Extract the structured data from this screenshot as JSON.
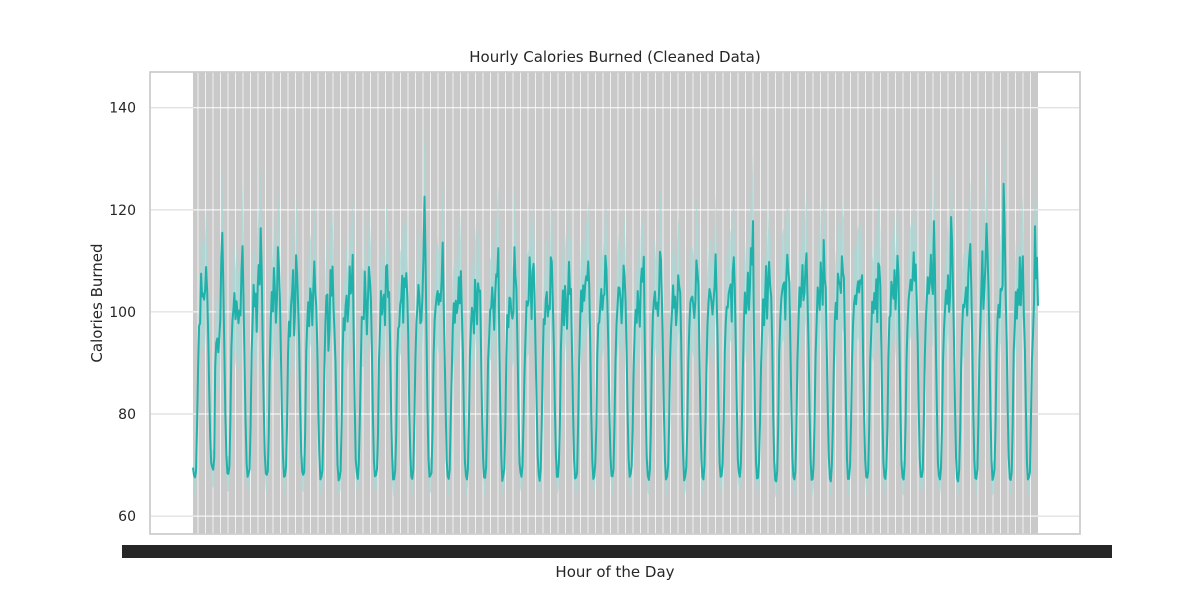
{
  "chart_data": {
    "type": "line",
    "title": "Hourly Calories Burned (Cleaned Data)",
    "xlabel": "Hour of the Day",
    "ylabel": "Calories Burned",
    "ylim": [
      56.5,
      147
    ],
    "yticks": [
      60,
      80,
      100,
      120,
      140
    ],
    "xtick_labels_note": "dense overlapping hourly timestamp labels rendered as a solid black band",
    "grid": true,
    "style": "line with shaded confidence band",
    "colors": {
      "line": "#20b2aa",
      "band": "#a8d8d5",
      "plot_bg": "#c9c9c9",
      "grid": "#ffffff",
      "axis_frame": "#cccccc",
      "tick_band": "#262626"
    },
    "series": [
      {
        "values": [
          69.5,
          68,
          67.6,
          68.7,
          77.2,
          89.2,
          97.3,
          97.8,
          107.5,
          103,
          103.6,
          102.4,
          104.3,
          108.8,
          103.9,
          95.4,
          85,
          75.2,
          70.4,
          69.6,
          69.1,
          71.4,
          89.1,
          93.9,
          94.8,
          92.1,
          95,
          98.6,
          110.8,
          115.5,
          105.3,
          92.9,
          80.4,
          71.8,
          68.4,
          68.3,
          69.8,
          79.1,
          93,
          98.2,
          100.4,
          103.7,
          98.6,
          102.1,
          99.9,
          97.8,
          100.3,
          99.3,
          108.3,
          112.9,
          102.8,
          90.1,
          78.3,
          70.4,
          67.7,
          68.4,
          69.2,
          77.8,
          92.1,
          98,
          105.3,
          101.1,
          103.6,
          96.1,
          104.9,
          109.2,
          105.4,
          116.4,
          108.3,
          93.5,
          80.8,
          72.1,
          68.4,
          68.1,
          68.8,
          76.5,
          90.4,
          98.5,
          103.9,
          100.1,
          108.6,
          104.3,
          97.9,
          102.2,
          112.7,
          108.8,
          102.6,
          91.8,
          80.2,
          71.6,
          67.7,
          67.9,
          69.6,
          77.6,
          91.6,
          98.1,
          95.2,
          101.2,
          103.8,
          108.2,
          95.4,
          100.3,
          111.1,
          107.5,
          101.5,
          94.8,
          82,
          72.5,
          68.7,
          68.1,
          68.6,
          76.9,
          92.1,
          97.5,
          101.9,
          97.2,
          104.6,
          103.1,
          97.4,
          104.5,
          109.9,
          103.8,
          101.1,
          93.1,
          80.8,
          72.2,
          67.2,
          67.7,
          69,
          77.3,
          89,
          97.6,
          103.2,
          103.4,
          92.4,
          96.4,
          108.2,
          103.2,
          108.9,
          101.1,
          96,
          90.2,
          79.6,
          70.1,
          67,
          67.4,
          68.9,
          77.9,
          91.7,
          98.8,
          96.4,
          101.2,
          103.2,
          98.1,
          101.4,
          108.9,
          103.6,
          104.7,
          111.2,
          95,
          82.3,
          71.1,
          68.7,
          67.3,
          70.3,
          78.7,
          89.4,
          99,
          98.9,
          98.6,
          107.9,
          102.5,
          95.6,
          102.3,
          108.8,
          106.2,
          102.6,
          92.4,
          79.7,
          70.8,
          67.8,
          68,
          69.2,
          76.2,
          90.7,
          96.7,
          104.1,
          99.5,
          102.3,
          103.4,
          97.4,
          108.9,
          109.2,
          102.9,
          103.9,
          94,
          80.8,
          71.8,
          67.2,
          67.2,
          69,
          76,
          91.4,
          96.8,
          97.2,
          101.5,
          102.5,
          107.1,
          97.9,
          106.6,
          104.9,
          107.6,
          102.9,
          94.8,
          80,
          72.2,
          67.7,
          67.3,
          69.1,
          78.8,
          90.7,
          98,
          100.8,
          105.3,
          103,
          97.8,
          98.2,
          102.8,
          110.9,
          122.6,
          111.3,
          95.4,
          81.2,
          71.1,
          67.7,
          68,
          68.5,
          77.2,
          91.5,
          98.2,
          100.9,
          102.9,
          104.1,
          101.4,
          103.5,
          102.1,
          106.1,
          113.6,
          101.3,
          91.4,
          80.6,
          70.9,
          67.8,
          67.3,
          69.1,
          78.9,
          88.4,
          96.8,
          101.7,
          97.9,
          102.2,
          99.8,
          101.2,
          106.8,
          101.7,
          108,
          99.6,
          92.3,
          79.9,
          70.7,
          68,
          67.2,
          69.4,
          78.2,
          91.4,
          97.4,
          100.8,
          99.2,
          95.8,
          106.3,
          103.1,
          97.6,
          105.6,
          104,
          104.2,
          91.8,
          79.4,
          71.4,
          67.6,
          67.5,
          69.6,
          78.4,
          90.7,
          95.1,
          100.4,
          100.8,
          104.8,
          101.6,
          96.5,
          103.7,
          107.4,
          106.9,
          112.5,
          93.4,
          80.9,
          71.6,
          66.9,
          68,
          69.3,
          77.3,
          91.2,
          99.4,
          97,
          102.8,
          102.6,
          99.8,
          98.7,
          100,
          112.7,
          107.1,
          104.6,
          93.4,
          80.8,
          70.4,
          68.5,
          67.7,
          69.9,
          78.5,
          88.3,
          95,
          102.1,
          101.2,
          102.2,
          110.7,
          105.8,
          98.6,
          107.9,
          109.4,
          103.1,
          92.2,
          81.3,
          71.8,
          68.2,
          66.9,
          69.2,
          77.5,
          89.8,
          98.6,
          97.6,
          102.5,
          103.9,
          99.1,
          101.2,
          100.5,
          110.7,
          109.8,
          102,
          93.6,
          80.8,
          72.1,
          67.7,
          67.7,
          70.5,
          78.2,
          92.9,
          98.6,
          104.2,
          97.4,
          105.1,
          101.9,
          96.7,
          103.3,
          109.8,
          103.5,
          104.5,
          92.6,
          81.2,
          71,
          67.4,
          67.6,
          68.5,
          77.9,
          89.7,
          97.9,
          104.2,
          100.1,
          105.2,
          102.2,
          105.3,
          107,
          106.2,
          109.9,
          105.2,
          94,
          80.5,
          70.9,
          67.3,
          67.8,
          70.4,
          77.6,
          91.6,
          97.6,
          98,
          101.4,
          104.5,
          100.4,
          103.1,
          103.4,
          111,
          108.4,
          101.5,
          92.5,
          80.6,
          72.1,
          67.9,
          67.8,
          69.3,
          78.5,
          90.3,
          97.5,
          101,
          104.8,
          104.7,
          102.4,
          97.8,
          102.2,
          109.1,
          106.9,
          101.9,
          92.3,
          80.4,
          71.2,
          67.7,
          68.3,
          69.8,
          77.6,
          89.4,
          96.7,
          100.4,
          97.9,
          104.1,
          101,
          97.1,
          105.6,
          108.5,
          105.9,
          110.8,
          93.7,
          80.4,
          71.1,
          67.9,
          67.1,
          69.2,
          77.5,
          91.4,
          99.4,
          102.2,
          104,
          100.6,
          101.8,
          99.2,
          103.4,
          111.8,
          110.2,
          101.6,
          91.3,
          79.3,
          70.8,
          67.2,
          67.7,
          69.8,
          77.8,
          91,
          96.9,
          100.3,
          105.2,
          100.8,
          103,
          97.4,
          100.8,
          107.2,
          105,
          103.8,
          94,
          79.3,
          71.5,
          67,
          67.8,
          69.6,
          77.7,
          90.2,
          96.9,
          101.8,
          102.7,
          103,
          101.3,
          98.8,
          102.3,
          110.1,
          107.9,
          105.3,
          92.3,
          79.8,
          71.1,
          67.7,
          67.2,
          69.8,
          78.5,
          89.4,
          97.6,
          101.8,
          104.5,
          103.6,
          101.9,
          99.5,
          102.1,
          105.1,
          111.3,
          103.3,
          94.3,
          80.3,
          70.4,
          67.7,
          67.9,
          70.4,
          78.7,
          91.8,
          97.7,
          101,
          100.8,
          103.6,
          104.6,
          105.4,
          98.1,
          107.7,
          110.7,
          104.5,
          93.4,
          81.8,
          71.1,
          68.7,
          67.7,
          69.9,
          78.2,
          88.8,
          98.1,
          103.8,
          99.7,
          102.1,
          107.7,
          100.4,
          104.8,
          112.5,
          109.3,
          117.8,
          94,
          79.5,
          70.6,
          67.4,
          67.5,
          70.5,
          78.2,
          90,
          96.2,
          102.5,
          97.4,
          102.6,
          109,
          98.7,
          105.5,
          109.8,
          105.2,
          103.1,
          94.1,
          79.9,
          70.8,
          67.1,
          66.8,
          68.8,
          77.6,
          92,
          98.6,
          102.6,
          104.3,
          105.4,
          105.8,
          98.5,
          106.9,
          111.2,
          108,
          105.7,
          93.1,
          81.2,
          71.4,
          67.7,
          67.2,
          68.7,
          77.2,
          90.4,
          97.1,
          104.8,
          101,
          104.6,
          109.2,
          102.3,
          103.8,
          108.8,
          111.5,
          102.9,
          92.6,
          80.3,
          70.9,
          67.1,
          67.3,
          70,
          79.6,
          91.6,
          97.8,
          104.8,
          103.2,
          100.4,
          109.7,
          105.5,
          101.4,
          114.1,
          106.5,
          104.7,
          92.5,
          80.4,
          71.8,
          67.4,
          66.8,
          69.9,
          77.1,
          89.1,
          98.3,
          101.8,
          98.6,
          107.5,
          106,
          105.4,
          103.7,
          110.9,
          107.8,
          106.6,
          94.5,
          81.1,
          71.1,
          67.3,
          67.3,
          69.7,
          77.9,
          90.2,
          97.3,
          101.6,
          103.2,
          101.5,
          104.5,
          106,
          103.8,
          106.2,
          105.6,
          107.2,
          91.1,
          79.6,
          71,
          67.7,
          67.5,
          68.8,
          77.3,
          90.6,
          95.7,
          102,
          99.8,
          103.7,
          100.6,
          106.4,
          98,
          109.5,
          109,
          105.1,
          93.5,
          80.3,
          70.6,
          67.7,
          67.3,
          69.6,
          77.2,
          91,
          98.9,
          99.3,
          105.9,
          104.5,
          102.6,
          108.2,
          100.5,
          105.2,
          111,
          107.1,
          93.7,
          79.9,
          70.2,
          67.6,
          67.2,
          70.1,
          78.5,
          91.3,
          97.6,
          102.4,
          104.3,
          106.3,
          104.2,
          106.8,
          111.7,
          106.1,
          109.3,
          102.4,
          93.9,
          81.2,
          71.2,
          67.7,
          67.7,
          69.1,
          78.2,
          91.1,
          98.2,
          102.4,
          106.8,
          103.6,
          105.8,
          111.2,
          105.3,
          103.5,
          117.8,
          108.8,
          92.7,
          81.1,
          70.5,
          67.9,
          67.2,
          69.4,
          77.5,
          90.2,
          96.7,
          100.5,
          104.2,
          101.6,
          107.2,
          100,
          103,
          118.6,
          113.6,
          103.9,
          93,
          80.7,
          71.2,
          67.4,
          66.8,
          69.1,
          77,
          90.1,
          97.2,
          101.4,
          100.9,
          102.8,
          104.8,
          99.3,
          107.4,
          110.9,
          113.3,
          104.7,
          93.2,
          80.1,
          70.9,
          67.5,
          67.3,
          69.2,
          78.6,
          91.1,
          97.7,
          104.8,
          111.9,
          100.6,
          104.5,
          109.1,
          117.3,
          111.7,
          104.6,
          92.9,
          79.9,
          70.9,
          67.1,
          67.8,
          69.2,
          77.4,
          91.8,
          98.9,
          101.4,
          98.9,
          104.5,
          104.2,
          105.2,
          125.1,
          117.3,
          103,
          94.5,
          80.8,
          71.6,
          67.4,
          67.1,
          68.6,
          78.1,
          92.3,
          97.3,
          103.9,
          98.7,
          104.4,
          101.4,
          110.7,
          101.3,
          106.7,
          110.9,
          99.7,
          92.6,
          80.9,
          70.6,
          67.2,
          67.6,
          68.5,
          78.6,
          90.4,
          95.1,
          101.8,
          116.8,
          106.6,
          110.6,
          101.2
        ]
      }
    ]
  }
}
